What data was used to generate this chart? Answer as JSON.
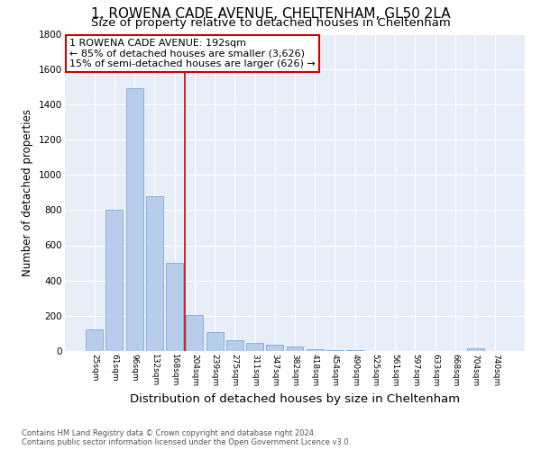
{
  "title": "1, ROWENA CADE AVENUE, CHELTENHAM, GL50 2LA",
  "subtitle": "Size of property relative to detached houses in Cheltenham",
  "xlabel": "Distribution of detached houses by size in Cheltenham",
  "ylabel": "Number of detached properties",
  "categories": [
    "25sqm",
    "61sqm",
    "96sqm",
    "132sqm",
    "168sqm",
    "204sqm",
    "239sqm",
    "275sqm",
    "311sqm",
    "347sqm",
    "382sqm",
    "418sqm",
    "454sqm",
    "490sqm",
    "525sqm",
    "561sqm",
    "597sqm",
    "633sqm",
    "668sqm",
    "704sqm",
    "740sqm"
  ],
  "values": [
    125,
    800,
    1490,
    880,
    500,
    205,
    105,
    62,
    48,
    35,
    25,
    8,
    4,
    3,
    2,
    1,
    1,
    0,
    0,
    14,
    0
  ],
  "bar_color": "#b8cceb",
  "bar_edge_color": "#7aadda",
  "vline_x_index": 4.5,
  "vline_color": "#cc0000",
  "annotation_text": "1 ROWENA CADE AVENUE: 192sqm\n← 85% of detached houses are smaller (3,626)\n15% of semi-detached houses are larger (626) →",
  "annotation_box_color": "#ffffff",
  "annotation_box_edge_color": "#cc0000",
  "ylim": [
    0,
    1800
  ],
  "yticks": [
    0,
    200,
    400,
    600,
    800,
    1000,
    1200,
    1400,
    1600,
    1800
  ],
  "background_color": "#e8eef7",
  "footer_text": "Contains HM Land Registry data © Crown copyright and database right 2024.\nContains public sector information licensed under the Open Government Licence v3.0.",
  "title_fontsize": 11,
  "subtitle_fontsize": 9.5,
  "xlabel_fontsize": 9.5,
  "ylabel_fontsize": 8.5,
  "annotation_fontsize": 8
}
